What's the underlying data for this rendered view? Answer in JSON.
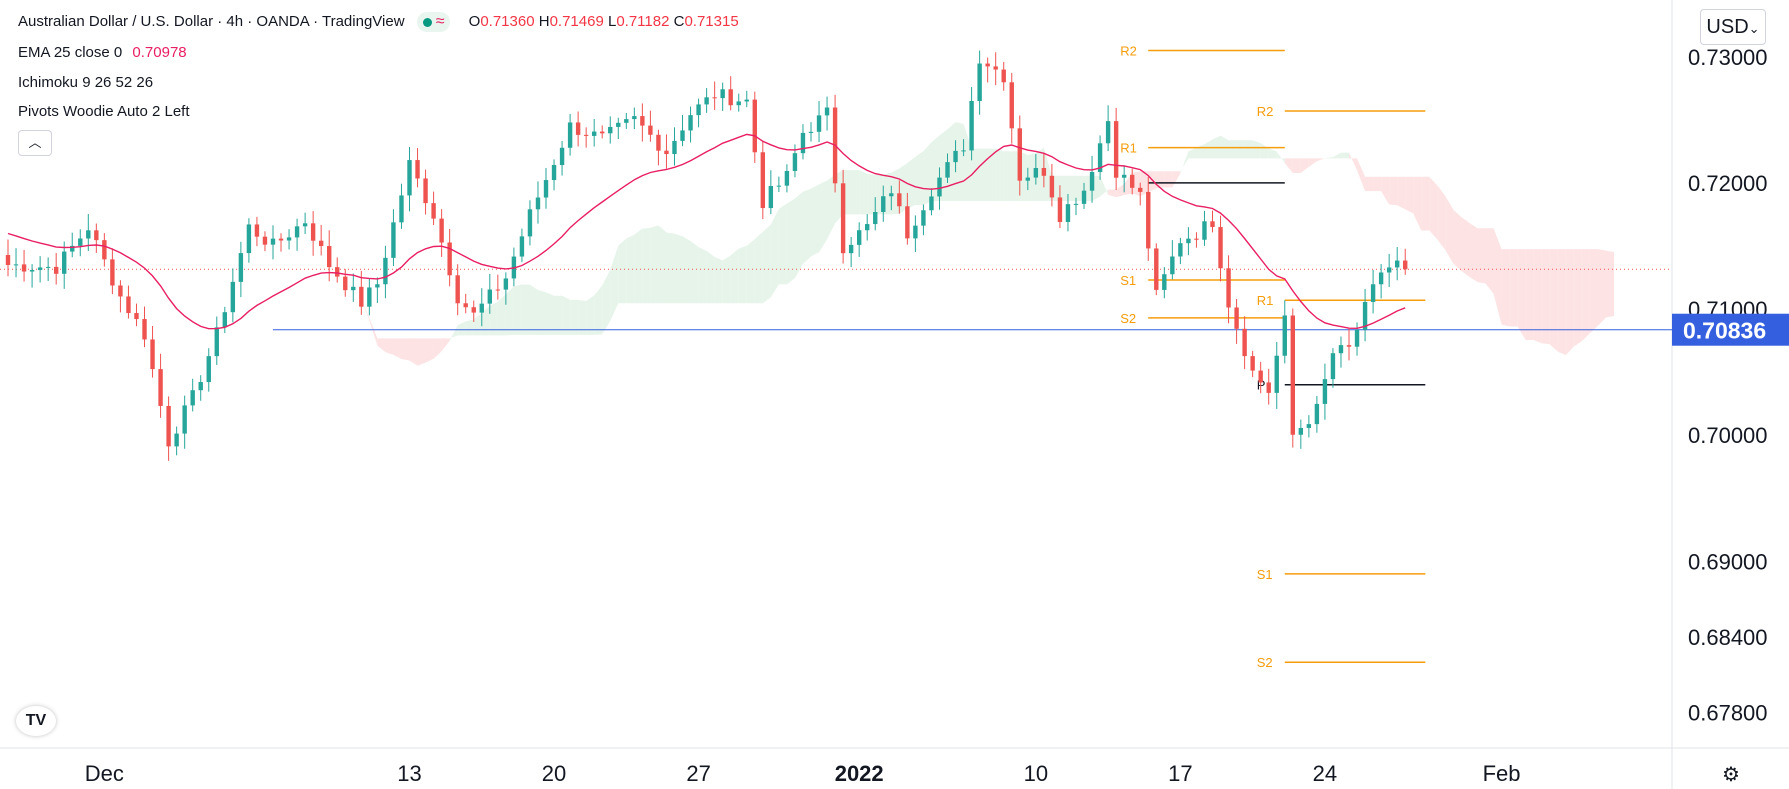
{
  "header": {
    "symbol": "Australian Dollar / U.S. Dollar · 4h · OANDA · TradingView",
    "ohlc_open_label": "O",
    "ohlc_open": "0.71360",
    "ohlc_high_label": "H",
    "ohlc_high": "0.71469",
    "ohlc_low_label": "L",
    "ohlc_low": "0.71182",
    "ohlc_close_label": "C",
    "ohlc_close": "0.71315"
  },
  "indicators": {
    "ema_label": "EMA 25 close 0",
    "ema_value": "0.70978",
    "ichimoku_label": "Ichimoku 9 26 52 26",
    "pivots_label": "Pivots Woodie Auto 2 Left"
  },
  "currency_button": "USD",
  "collapse_icon": "chevron-up-icon",
  "logo_text": "TV",
  "colors": {
    "up": "#26a69a",
    "down": "#ef5350",
    "ema": "#e91e63",
    "pivot": "#f59d0b",
    "price_line": "#3460e0",
    "cloud_bull": "#e6f4ea",
    "cloud_bear": "#fde3e3"
  },
  "chart_data": {
    "type": "candlestick",
    "xlabel": "",
    "ylabel": "",
    "ylim": [
      0.6752,
      0.7345
    ],
    "y_ticks": [
      "0.73000",
      "0.72000",
      "0.71000",
      "0.70000",
      "0.69000",
      "0.68400",
      "0.67800"
    ],
    "y_tick_values": [
      0.73,
      0.72,
      0.71,
      0.7,
      0.69,
      0.684,
      0.678
    ],
    "x_tick_labels": [
      "Dec",
      "13",
      "20",
      "27",
      "2022",
      "10",
      "17",
      "24",
      "Feb"
    ],
    "x_tick_index": [
      12,
      50,
      68,
      86,
      106,
      128,
      146,
      164,
      186
    ],
    "x_count": 216,
    "price_marker": {
      "label": "0.70836",
      "value": 0.70836
    },
    "current_price": 0.71315,
    "close_path_anchors": [
      [
        0,
        0.7135
      ],
      [
        6,
        0.7133
      ],
      [
        10,
        0.7165
      ],
      [
        14,
        0.711
      ],
      [
        17,
        0.708
      ],
      [
        20,
        0.6995
      ],
      [
        23,
        0.703
      ],
      [
        26,
        0.708
      ],
      [
        30,
        0.7165
      ],
      [
        33,
        0.715
      ],
      [
        37,
        0.717
      ],
      [
        40,
        0.7135
      ],
      [
        44,
        0.7105
      ],
      [
        46,
        0.712
      ],
      [
        50,
        0.7215
      ],
      [
        53,
        0.7175
      ],
      [
        56,
        0.711
      ],
      [
        58,
        0.7095
      ],
      [
        62,
        0.7125
      ],
      [
        65,
        0.7175
      ],
      [
        70,
        0.7245
      ],
      [
        74,
        0.7235
      ],
      [
        78,
        0.725
      ],
      [
        82,
        0.7225
      ],
      [
        85,
        0.7255
      ],
      [
        88,
        0.727
      ],
      [
        92,
        0.7265
      ],
      [
        94,
        0.7185
      ],
      [
        97,
        0.7205
      ],
      [
        99,
        0.724
      ],
      [
        102,
        0.7255
      ],
      [
        104,
        0.715
      ],
      [
        107,
        0.7165
      ],
      [
        110,
        0.7195
      ],
      [
        112,
        0.716
      ],
      [
        115,
        0.7195
      ],
      [
        119,
        0.723
      ],
      [
        121,
        0.73
      ],
      [
        124,
        0.7285
      ],
      [
        126,
        0.7205
      ],
      [
        129,
        0.721
      ],
      [
        131,
        0.7175
      ],
      [
        134,
        0.7195
      ],
      [
        137,
        0.725
      ],
      [
        138,
        0.721
      ],
      [
        141,
        0.719
      ],
      [
        143,
        0.711
      ],
      [
        146,
        0.7155
      ],
      [
        148,
        0.716
      ],
      [
        150,
        0.717
      ],
      [
        152,
        0.7105
      ],
      [
        155,
        0.705
      ],
      [
        157,
        0.7035
      ],
      [
        159,
        0.709
      ],
      [
        160,
        0.7
      ],
      [
        163,
        0.702
      ],
      [
        165,
        0.7065
      ],
      [
        167,
        0.7068
      ],
      [
        169,
        0.71
      ],
      [
        171,
        0.713
      ],
      [
        173,
        0.7136
      ],
      [
        174,
        0.71315
      ]
    ],
    "ema_value": 0.70978,
    "pivot_levels": [
      {
        "label": "R2",
        "value": 0.7305,
        "period": 1
      },
      {
        "label": "",
        "value": 0.72,
        "period": 1
      },
      {
        "label": "R1",
        "value": 0.7228,
        "period": 1
      },
      {
        "label": "S1",
        "value": 0.7123,
        "period": 1
      },
      {
        "label": "S2",
        "value": 0.7093,
        "period": 1
      },
      {
        "label": "R2",
        "value": 0.7257,
        "period": 2
      },
      {
        "label": "R1",
        "value": 0.7107,
        "period": 2
      },
      {
        "label": "P",
        "value": 0.704,
        "period": 2
      },
      {
        "label": "S1",
        "value": 0.689,
        "period": 2
      },
      {
        "label": "S2",
        "value": 0.682,
        "period": 2
      }
    ]
  }
}
